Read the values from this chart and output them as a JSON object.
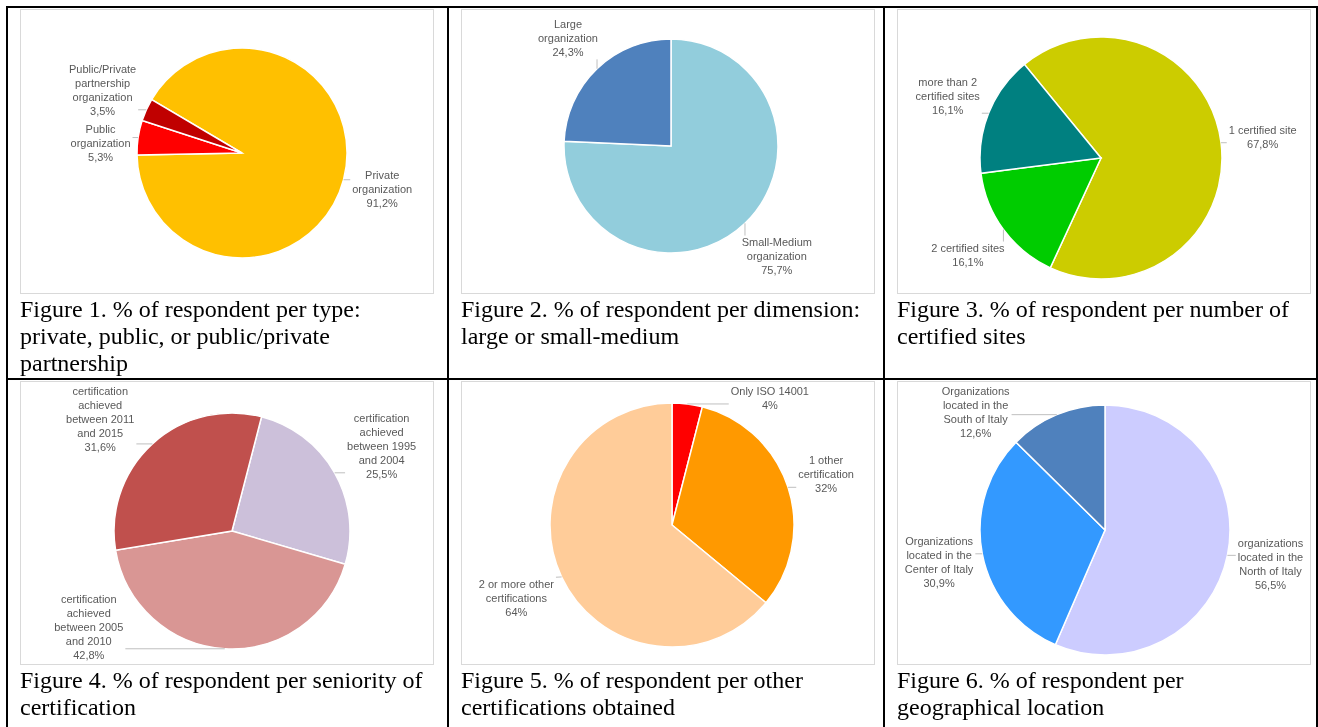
{
  "chart_data": [
    {
      "type": "pie",
      "categories": [
        "Private organization",
        "Public organization",
        "Public/Private partnership organization"
      ],
      "values": [
        91.2,
        5.3,
        3.5
      ],
      "colors": [
        "#ffc000",
        "#ff0000",
        "#c00000"
      ],
      "value_labels": [
        "91,2%",
        "5,3%",
        "3,5%"
      ],
      "annotations": [
        "Figure 1. % of respondent per type: private, public, or public/private partnership"
      ]
    },
    {
      "type": "pie",
      "categories": [
        "Small-Medium organization",
        "Large organization"
      ],
      "values": [
        75.7,
        24.3
      ],
      "colors": [
        "#92cddc",
        "#4f81bd"
      ],
      "value_labels": [
        "75,7%",
        "24,3%"
      ],
      "annotations": [
        "Figure 2. % of respondent per dimension: large or small-medium"
      ]
    },
    {
      "type": "pie",
      "categories": [
        "1 certified site",
        "2 certified sites",
        "more than 2 certified sites"
      ],
      "values": [
        67.8,
        16.1,
        16.1
      ],
      "colors": [
        "#cccc00",
        "#00cc00",
        "#008080"
      ],
      "value_labels": [
        "67,8%",
        "16,1%",
        "16,1%"
      ],
      "annotations": [
        "Figure 3. % of respondent per number of certified sites"
      ]
    },
    {
      "type": "pie",
      "categories": [
        "certification achieved between 1995 and 2004",
        "certification achieved between 2005 and 2010",
        "certification achieved between 2011 and 2015"
      ],
      "values": [
        25.5,
        42.8,
        31.6
      ],
      "colors": [
        "#ccc0da",
        "#d99694",
        "#c0504d"
      ],
      "value_labels": [
        "25,5%",
        "42,8%",
        "31,6%"
      ],
      "annotations": [
        "Figure 4. % of respondent per seniority of certification"
      ]
    },
    {
      "type": "pie",
      "categories": [
        "Only ISO 14001",
        "1 other certification",
        "2 or more other certifications"
      ],
      "values": [
        4,
        32,
        64
      ],
      "colors": [
        "#ff0000",
        "#ff9900",
        "#ffcc99"
      ],
      "value_labels": [
        "4%",
        "32%",
        "64%"
      ],
      "annotations": [
        "Figure 5. % of respondent per other certifications obtained"
      ]
    },
    {
      "type": "pie",
      "categories": [
        "organizations located in the North of Italy",
        "Organizations located in the Center of Italy",
        "Organizations located in the South of Italy"
      ],
      "values": [
        56.5,
        30.9,
        12.6
      ],
      "colors": [
        "#ccccff",
        "#3399ff",
        "#4f81bd"
      ],
      "value_labels": [
        "56,5%",
        "30,9%",
        "12,6%"
      ],
      "annotations": [
        "Figure 6. % of respondent per geographical location"
      ]
    }
  ]
}
